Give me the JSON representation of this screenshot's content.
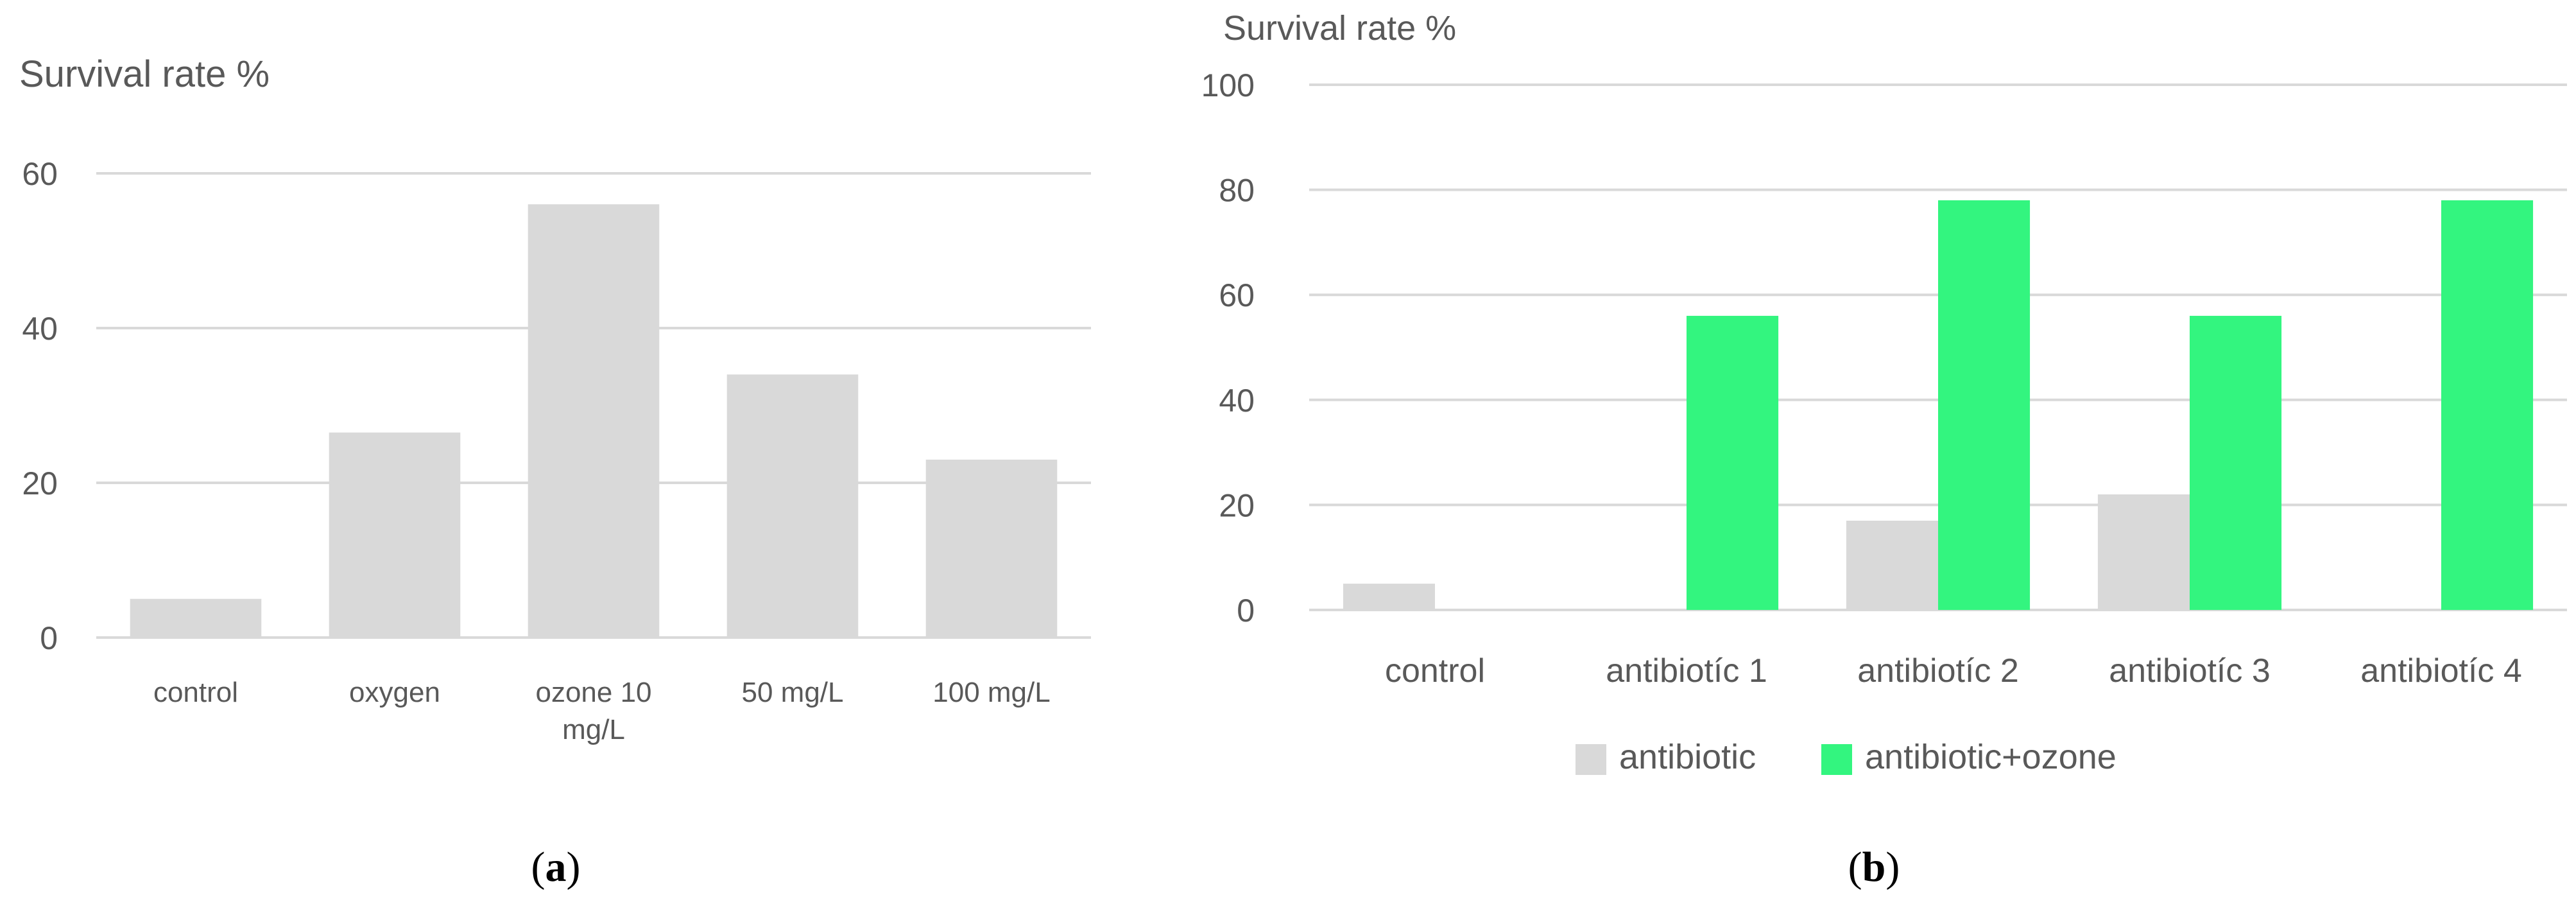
{
  "chart_data": [
    {
      "type": "bar",
      "panel_label": "a",
      "ylabel": "Survival rate %",
      "ylim": [
        0,
        60
      ],
      "yticks": [
        0,
        20,
        40,
        60
      ],
      "categories": [
        [
          "control"
        ],
        [
          "oxygen"
        ],
        [
          "ozone 10",
          "mg/L"
        ],
        [
          "50 mg/L"
        ],
        [
          "100 mg/L"
        ]
      ],
      "series": [
        {
          "values": [
            5,
            26.5,
            56,
            34,
            23
          ],
          "color": "#d9d9d9"
        }
      ],
      "grid": true,
      "legend": "none"
    },
    {
      "type": "bar",
      "panel_label": "b",
      "ylabel": "Survival rate %",
      "ylim": [
        0,
        100
      ],
      "yticks": [
        0,
        20,
        40,
        60,
        80,
        100
      ],
      "categories": [
        [
          "control"
        ],
        [
          "antibiotíc 1"
        ],
        [
          "antibiotíc 2"
        ],
        [
          "antibiotíc 3"
        ],
        [
          "antibiotíc 4"
        ]
      ],
      "series": [
        {
          "name": "antibiotic",
          "values": [
            5,
            0,
            17,
            22,
            0
          ],
          "color": "#d9d9d9"
        },
        {
          "name": "antibiotic+ozone",
          "values": [
            0,
            56,
            78,
            56,
            78
          ],
          "color": "#33f57f"
        }
      ],
      "grid": true,
      "legend": "bottom"
    }
  ]
}
